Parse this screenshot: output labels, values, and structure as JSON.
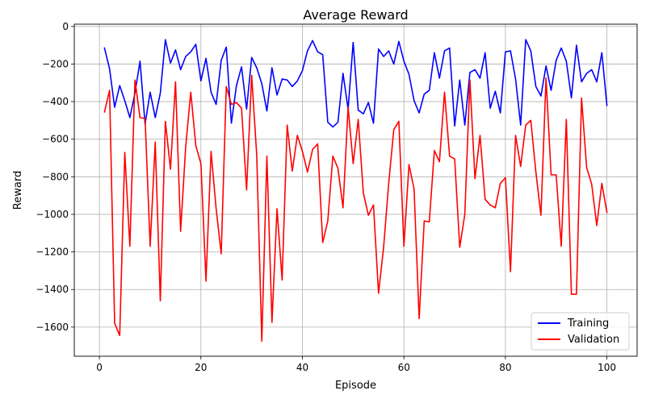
{
  "chart_data": {
    "type": "line",
    "title": "Average Reward",
    "xlabel": "Episode",
    "ylabel": "Reward",
    "xlim": [
      -4.95,
      105.95
    ],
    "ylim": [
      -1755,
      12
    ],
    "xticks": [
      0,
      20,
      40,
      60,
      80,
      100
    ],
    "yticks": [
      0,
      -200,
      -400,
      -600,
      -800,
      -1000,
      -1200,
      -1400,
      -1600
    ],
    "ytick_labels": [
      "0",
      "−200",
      "−400",
      "−600",
      "−800",
      "−1000",
      "−1200",
      "−1400",
      "−1600"
    ],
    "grid": true,
    "legend_position": "bottom-right",
    "x": [
      1,
      2,
      3,
      4,
      5,
      6,
      7,
      8,
      9,
      10,
      11,
      12,
      13,
      14,
      15,
      16,
      17,
      18,
      19,
      20,
      21,
      22,
      23,
      24,
      25,
      26,
      27,
      28,
      29,
      30,
      31,
      32,
      33,
      34,
      35,
      36,
      37,
      38,
      39,
      40,
      41,
      42,
      43,
      44,
      45,
      46,
      47,
      48,
      49,
      50,
      51,
      52,
      53,
      54,
      55,
      56,
      57,
      58,
      59,
      60,
      61,
      62,
      63,
      64,
      65,
      66,
      67,
      68,
      69,
      70,
      71,
      72,
      73,
      74,
      75,
      76,
      77,
      78,
      79,
      80,
      81,
      82,
      83,
      84,
      85,
      86,
      87,
      88,
      89,
      90,
      91,
      92,
      93,
      94,
      95,
      96,
      97,
      98,
      99,
      100
    ],
    "series": [
      {
        "name": "Training",
        "color": "#0000ff",
        "values": [
          -115,
          -225,
          -430,
          -315,
          -395,
          -485,
          -355,
          -185,
          -520,
          -350,
          -485,
          -355,
          -70,
          -195,
          -125,
          -230,
          -160,
          -135,
          -95,
          -290,
          -170,
          -350,
          -415,
          -180,
          -110,
          -515,
          -315,
          -215,
          -440,
          -165,
          -220,
          -305,
          -450,
          -220,
          -365,
          -280,
          -285,
          -320,
          -290,
          -235,
          -130,
          -75,
          -135,
          -150,
          -510,
          -535,
          -510,
          -250,
          -440,
          -85,
          -445,
          -465,
          -405,
          -515,
          -120,
          -160,
          -130,
          -200,
          -80,
          -185,
          -255,
          -395,
          -460,
          -360,
          -340,
          -140,
          -275,
          -130,
          -115,
          -530,
          -285,
          -525,
          -245,
          -230,
          -275,
          -140,
          -435,
          -345,
          -460,
          -135,
          -130,
          -280,
          -525,
          -70,
          -130,
          -320,
          -370,
          -210,
          -340,
          -180,
          -115,
          -185,
          -380,
          -100,
          -295,
          -250,
          -230,
          -295,
          -140,
          -420
        ]
      },
      {
        "name": "Validation",
        "color": "#ff0000",
        "values": [
          -455,
          -340,
          -1580,
          -1645,
          -670,
          -1170,
          -285,
          -485,
          -490,
          -1170,
          -615,
          -1460,
          -505,
          -760,
          -295,
          -1090,
          -640,
          -350,
          -635,
          -730,
          -1355,
          -665,
          -970,
          -1210,
          -320,
          -415,
          -405,
          -435,
          -870,
          -260,
          -685,
          -1675,
          -690,
          -1575,
          -970,
          -1350,
          -525,
          -770,
          -580,
          -665,
          -775,
          -655,
          -625,
          -1150,
          -1035,
          -690,
          -755,
          -965,
          -430,
          -730,
          -495,
          -885,
          -1005,
          -950,
          -1420,
          -1175,
          -835,
          -550,
          -505,
          -1170,
          -735,
          -865,
          -1555,
          -1035,
          -1040,
          -660,
          -720,
          -350,
          -690,
          -705,
          -1175,
          -1000,
          -285,
          -810,
          -580,
          -920,
          -950,
          -965,
          -835,
          -805,
          -1305,
          -580,
          -745,
          -525,
          -500,
          -775,
          -1005,
          -275,
          -790,
          -790,
          -1170,
          -495,
          -1425,
          -1425,
          -380,
          -750,
          -840,
          -1060,
          -835,
          -990
        ]
      }
    ]
  }
}
